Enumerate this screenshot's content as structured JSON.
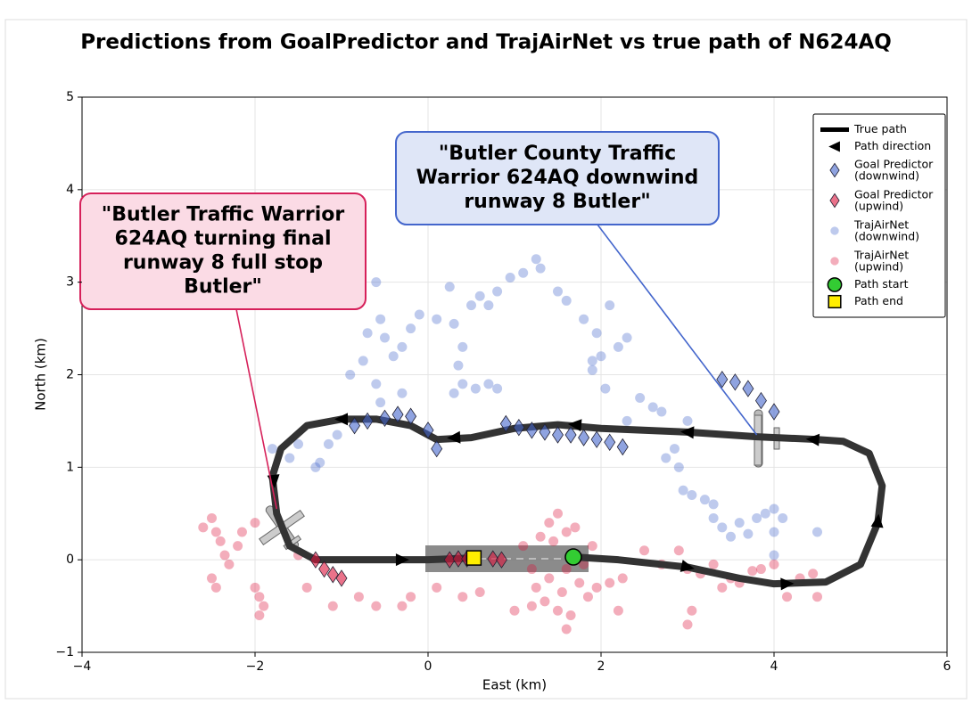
{
  "chart_data": {
    "type": "trajectory",
    "title": "Predictions from GoalPredictor and TrajAirNet vs true path of N624AQ",
    "x_label": "East (km)",
    "y_label": "North (km)",
    "xlim": [
      -4,
      6
    ],
    "ylim": [
      -1,
      5
    ],
    "xticks": [
      {
        "value": -4,
        "label": "−4"
      },
      {
        "value": -2,
        "label": "−2"
      },
      0,
      2,
      4,
      6
    ],
    "yticks": [
      {
        "value": -1,
        "label": "−1"
      },
      0,
      1,
      2,
      3,
      4,
      5
    ],
    "grid": true,
    "legend": "upper right",
    "series": [
      {
        "name": "TrajAirNet\n(downwind)",
        "marker": "circle",
        "color": "#4466cc",
        "x": [
          -1.8,
          -1.6,
          -1.5,
          -1.3,
          -1.25,
          -1.15,
          -1.05,
          -0.9,
          -0.75,
          -0.7,
          -0.6,
          -0.55,
          -0.5,
          -0.6,
          -0.4,
          -0.3,
          -0.2,
          -0.1,
          -0.55,
          -0.3,
          0.1,
          0.25,
          0.3,
          0.4,
          0.5,
          0.6,
          0.7,
          0.8,
          0.95,
          1.1,
          1.25,
          1.3,
          0.35,
          0.4,
          0.55,
          0.7,
          0.8,
          0.3,
          1.5,
          1.6,
          1.8,
          1.95,
          1.9,
          2.0,
          2.05,
          2.1,
          2.2,
          2.3,
          2.45,
          2.6,
          2.7,
          1.9,
          2.3,
          2.75,
          2.85,
          2.9,
          2.95,
          3.0,
          3.05,
          3.2,
          3.3,
          3.3,
          3.4,
          3.5,
          3.6,
          3.7,
          3.8,
          3.9,
          4.0,
          4.1,
          4.0,
          4.5,
          4.0
        ],
        "y": [
          1.2,
          1.1,
          1.25,
          1.0,
          1.05,
          1.25,
          1.35,
          2.0,
          2.15,
          2.45,
          3.0,
          2.6,
          2.4,
          1.9,
          2.2,
          2.3,
          2.5,
          2.65,
          1.7,
          1.8,
          2.6,
          2.95,
          2.55,
          2.3,
          2.75,
          2.85,
          2.75,
          2.9,
          3.05,
          3.1,
          3.25,
          3.15,
          2.1,
          1.9,
          1.85,
          1.9,
          1.85,
          1.8,
          2.9,
          2.8,
          2.6,
          2.45,
          2.15,
          2.2,
          1.85,
          2.75,
          2.3,
          2.4,
          1.75,
          1.65,
          1.6,
          2.05,
          1.5,
          1.1,
          1.2,
          1.0,
          0.75,
          1.5,
          0.7,
          0.65,
          0.6,
          0.45,
          0.35,
          0.25,
          0.4,
          0.28,
          0.45,
          0.5,
          0.55,
          0.45,
          0.3,
          0.3,
          0.05
        ]
      },
      {
        "name": "TrajAirNet\n(upwind)",
        "marker": "circle",
        "color": "#dc143c",
        "x": [
          -2.6,
          -2.5,
          -2.45,
          -2.4,
          -2.35,
          -2.3,
          -2.5,
          -2.45,
          -2.2,
          -2.15,
          -2.0,
          -2.0,
          -1.95,
          -1.95,
          -1.9,
          -1.5,
          -1.4,
          -1.1,
          -0.8,
          -0.6,
          -0.2,
          -0.3,
          0.1,
          0.4,
          0.6,
          1.1,
          1.2,
          1.25,
          1.3,
          1.35,
          1.4,
          1.4,
          1.45,
          1.5,
          1.5,
          1.55,
          1.6,
          1.6,
          1.65,
          1.7,
          1.75,
          1.8,
          1.85,
          1.9,
          1.95,
          2.1,
          2.25,
          2.5,
          2.7,
          2.9,
          3.0,
          3.15,
          3.3,
          3.4,
          3.5,
          3.6,
          3.75,
          3.85,
          4.0,
          4.15,
          4.3,
          4.45,
          4.5,
          3.0,
          3.05,
          1.0,
          1.2,
          1.6,
          2.2
        ],
        "y": [
          0.35,
          0.45,
          0.3,
          0.2,
          0.05,
          -0.05,
          -0.2,
          -0.3,
          0.15,
          0.3,
          0.4,
          -0.3,
          -0.4,
          -0.6,
          -0.5,
          0.05,
          -0.3,
          -0.5,
          -0.4,
          -0.5,
          -0.4,
          -0.5,
          -0.3,
          -0.4,
          -0.35,
          0.15,
          -0.1,
          -0.3,
          0.25,
          -0.45,
          0.4,
          -0.2,
          0.2,
          -0.55,
          0.5,
          -0.35,
          0.3,
          -0.1,
          -0.6,
          0.35,
          -0.25,
          -0.05,
          -0.4,
          0.15,
          -0.3,
          -0.25,
          -0.2,
          0.1,
          -0.05,
          0.1,
          -0.1,
          -0.15,
          -0.05,
          -0.3,
          -0.2,
          -0.25,
          -0.12,
          -0.1,
          -0.05,
          -0.4,
          -0.2,
          -0.15,
          -0.4,
          -0.7,
          -0.55,
          -0.55,
          -0.5,
          -0.75,
          -0.55
        ]
      },
      {
        "name": "True path",
        "marker": "line",
        "color": "#333333",
        "x": [
          1.68,
          2.2,
          3.0,
          3.6,
          4.0,
          4.6,
          5.0,
          5.2,
          5.25,
          5.1,
          4.8,
          4.5,
          3.8,
          3.0,
          2.0,
          1.5,
          1.0,
          0.5,
          0.1,
          -0.2,
          -0.6,
          -1.0,
          -1.4,
          -1.7,
          -1.8,
          -1.75,
          -1.6,
          -1.3,
          -0.5,
          0.0,
          0.53
        ],
        "y": [
          0.03,
          0.0,
          -0.08,
          -0.2,
          -0.26,
          -0.24,
          -0.05,
          0.4,
          0.8,
          1.15,
          1.28,
          1.3,
          1.33,
          1.38,
          1.42,
          1.46,
          1.42,
          1.32,
          1.3,
          1.45,
          1.52,
          1.52,
          1.45,
          1.2,
          0.9,
          0.5,
          0.15,
          0.0,
          0.0,
          0.0,
          0.02
        ]
      },
      {
        "name": "Path direction",
        "marker": "arrow",
        "color": "#000000",
        "x": [
          3.0,
          4.15,
          5.2,
          4.45,
          3.0,
          1.7,
          0.3,
          -1.0,
          -1.78,
          -0.3
        ],
        "y": [
          -0.08,
          -0.26,
          0.42,
          1.3,
          1.38,
          1.46,
          1.32,
          1.52,
          0.85,
          0.0
        ]
      },
      {
        "name": "Goal Predictor\n(downwind)",
        "marker": "diamond",
        "color": "#4466cc",
        "x": [
          -0.85,
          -0.7,
          -0.5,
          -0.35,
          -0.2,
          0.0,
          0.1,
          0.9,
          1.05,
          1.2,
          1.35,
          1.5,
          1.65,
          1.8,
          1.95,
          2.1,
          2.25,
          3.4,
          3.55,
          3.7,
          3.85,
          4.0
        ],
        "y": [
          1.45,
          1.5,
          1.53,
          1.57,
          1.55,
          1.4,
          1.2,
          1.47,
          1.43,
          1.4,
          1.38,
          1.35,
          1.35,
          1.32,
          1.3,
          1.27,
          1.22,
          1.95,
          1.92,
          1.85,
          1.72,
          1.6
        ]
      },
      {
        "name": "Goal Predictor\n(upwind)",
        "marker": "diamond",
        "color": "#dc143c",
        "x": [
          -1.3,
          -1.2,
          -1.1,
          -1.0,
          0.25,
          0.35,
          0.45,
          0.75,
          0.85
        ],
        "y": [
          0.0,
          -0.1,
          -0.16,
          -0.2,
          0.0,
          0.01,
          0.01,
          0.01,
          0.0
        ]
      },
      {
        "name": "Path start",
        "marker": "circle-solid",
        "color": "#33cc33",
        "x": [
          1.68
        ],
        "y": [
          0.03
        ]
      },
      {
        "name": "Path end",
        "marker": "square",
        "color": "#ffee00",
        "x": [
          0.53
        ],
        "y": [
          0.02
        ]
      }
    ],
    "annotations": [
      {
        "text": "\"Butler Traffic Warrior\n624AQ turning final\nrunway 8 full stop\nButler\"",
        "xy": [
          -1.75,
          0.55
        ],
        "color": "#d6205a",
        "fill": "#fbdbe5"
      },
      {
        "text": "\"Butler County Traffic\nWarrior 624AQ downwind\nrunway 8 Butler\"",
        "xy": [
          3.8,
          1.35
        ],
        "color": "#4466cc",
        "fill": "#dfe6f7"
      }
    ]
  }
}
